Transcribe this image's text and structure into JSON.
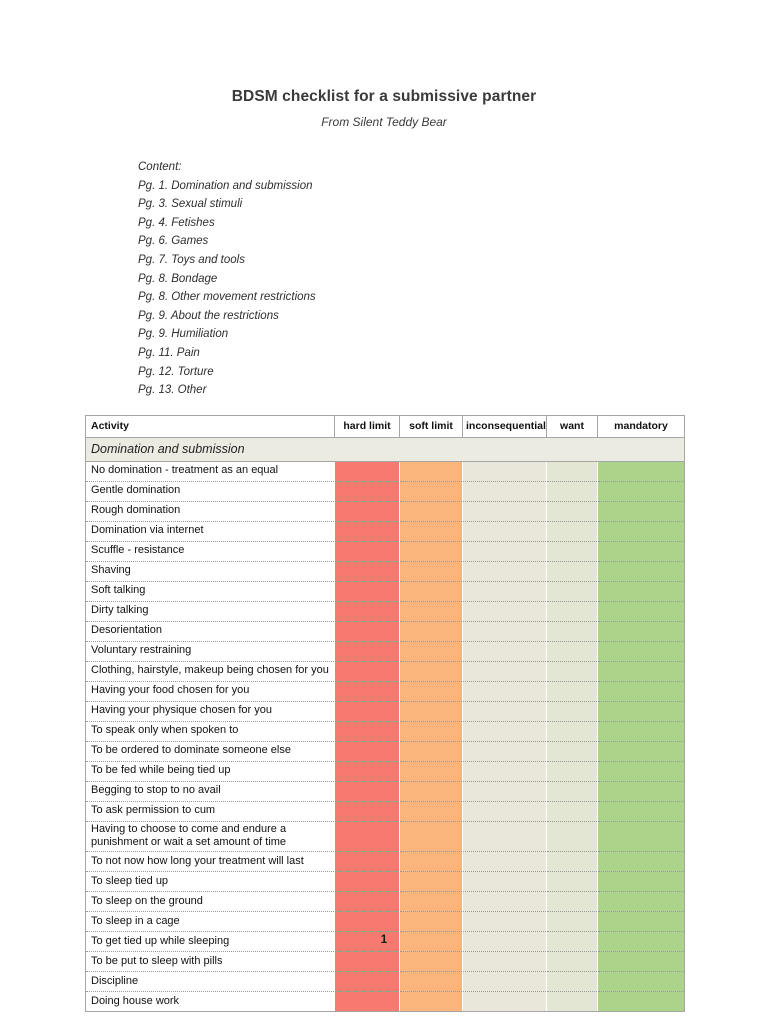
{
  "page": {
    "title": "BDSM checklist for a submissive partner",
    "subtitle": "From Silent Teddy Bear",
    "page_number": "1"
  },
  "toc": {
    "heading": "Content:",
    "items": [
      "Pg. 1. Domination and submission",
      "Pg. 3. Sexual stimuli",
      "Pg.  4. Fetishes",
      "Pg. 6. Games",
      "Pg. 7. Toys and tools",
      "Pg. 8. Bondage",
      "Pg. 8. Other movement restrictions",
      "Pg. 9. About the restrictions",
      "Pg. 9. Humiliation",
      "Pg. 11. Pain",
      "Pg. 12. Torture",
      "Pg. 13. Other"
    ]
  },
  "table": {
    "columns": [
      "Activity",
      "hard limit",
      "soft limit",
      "inconsequential",
      "want",
      "mandatory"
    ],
    "rating_columns": [
      "hard-limit",
      "soft-limit",
      "inconsequential",
      "want",
      "mandatory"
    ],
    "section": "Domination and submission",
    "rows": [
      "No domination - treatment as an equal",
      "Gentle domination",
      "Rough domination",
      "Domination via internet",
      "Scuffle - resistance",
      "Shaving",
      "Soft talking",
      "Dirty talking",
      "Desorientation",
      "Voluntary restraining",
      "Clothing, hairstyle, makeup being chosen for you",
      "Having your food chosen for you",
      "Having your physique chosen for you",
      "To speak only when spoken to",
      "To be ordered to dominate someone else",
      "To be fed while being tied up",
      "Begging to stop to no avail",
      "To ask permission to cum",
      "Having to choose to come and endure a punishment or wait a set amount of time",
      "To not now how long your treatment will last",
      "To sleep tied up",
      "To sleep on the ground",
      "To sleep in a cage",
      "To get tied up while sleeping",
      "To be put to sleep with pills",
      "Discipline",
      "Doing house work"
    ],
    "colors": {
      "hard_limit": "#f7796f",
      "soft_limit": "#f9b57c",
      "inconsequential": "#e9e7da",
      "want": "#e2e6d2",
      "mandatory": "#abd389",
      "section_bg": "#ebebe2"
    }
  }
}
